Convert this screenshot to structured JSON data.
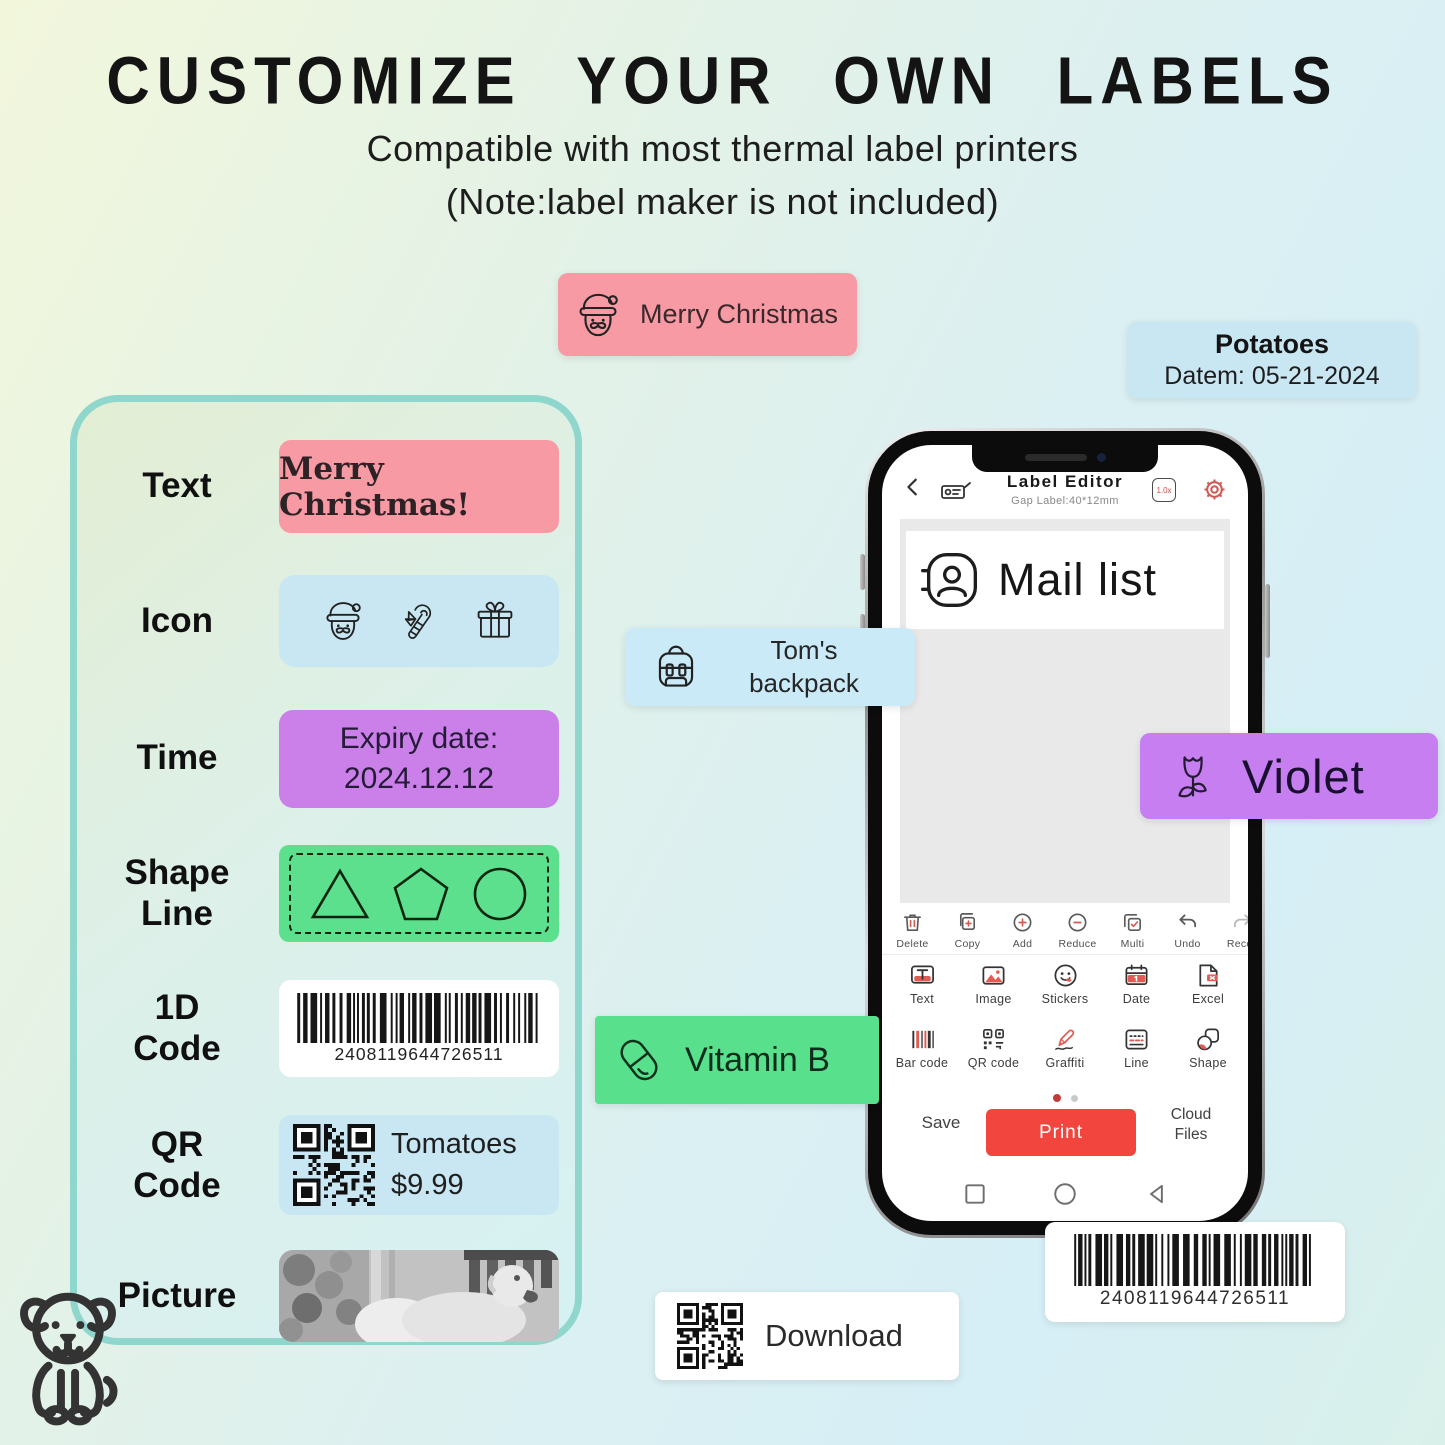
{
  "colors": {
    "pink": "#f79aa4",
    "blue": "#c9e7f3",
    "purple": "#cb80e9",
    "violet": "#c67ef0",
    "green": "#5ce08d",
    "panel_border": "#8fd6cd",
    "phone_accent_red": "#f2453d"
  },
  "header": {
    "title": "CUSTOMIZE YOUR OWN LABELS",
    "subtitle_line1": "Compatible with most thermal label printers",
    "subtitle_line2": "(Note:label maker is not included)"
  },
  "labels": {
    "merry_christmas": {
      "text": "Merry Christmas"
    },
    "potatoes": {
      "name": "Potatoes",
      "date": "Datem: 05-21-2024"
    },
    "toms_backpack": {
      "line1": "Tom's",
      "line2": "backpack"
    },
    "violet": {
      "text": "Violet"
    },
    "vitamin_b": {
      "text": "Vitamin B"
    },
    "download": {
      "text": "Download"
    },
    "barcode": {
      "digits": "2408119644726511"
    }
  },
  "panel": {
    "rows": [
      {
        "lines": [
          "Text"
        ],
        "value": "Merry Christmas!"
      },
      {
        "lines": [
          "Icon"
        ]
      },
      {
        "lines": [
          "Time"
        ],
        "value_line1": "Expiry date:",
        "value_line2": "2024.12.12"
      },
      {
        "lines": [
          "Shape",
          "Line"
        ]
      },
      {
        "lines": [
          "1D",
          "Code"
        ],
        "digits": "2408119644726511"
      },
      {
        "lines": [
          "QR",
          "Code"
        ],
        "product": "Tomatoes",
        "price": "$9.99"
      },
      {
        "lines": [
          "Picture"
        ]
      }
    ]
  },
  "phone": {
    "header": {
      "title": "Label Editor",
      "subtitle": "Gap Label:40*12mm",
      "zoom_badge": "1.0x"
    },
    "canvas_label": "Mail list",
    "edit_tools": [
      {
        "label": "Delete"
      },
      {
        "label": "Copy"
      },
      {
        "label": "Add"
      },
      {
        "label": "Reduce"
      },
      {
        "label": "Multi"
      },
      {
        "label": "Undo"
      },
      {
        "label": "Recov"
      }
    ],
    "insert_tools_row1": [
      {
        "label": "Text"
      },
      {
        "label": "Image"
      },
      {
        "label": "Stickers"
      },
      {
        "label": "Date"
      },
      {
        "label": "Excel"
      }
    ],
    "insert_tools_row2": [
      {
        "label": "Bar code"
      },
      {
        "label": "QR code"
      },
      {
        "label": "Graffiti"
      },
      {
        "label": "Line"
      },
      {
        "label": "Shape"
      }
    ],
    "actions": {
      "save": "Save",
      "print": "Print",
      "cloud": "Cloud Files"
    }
  }
}
